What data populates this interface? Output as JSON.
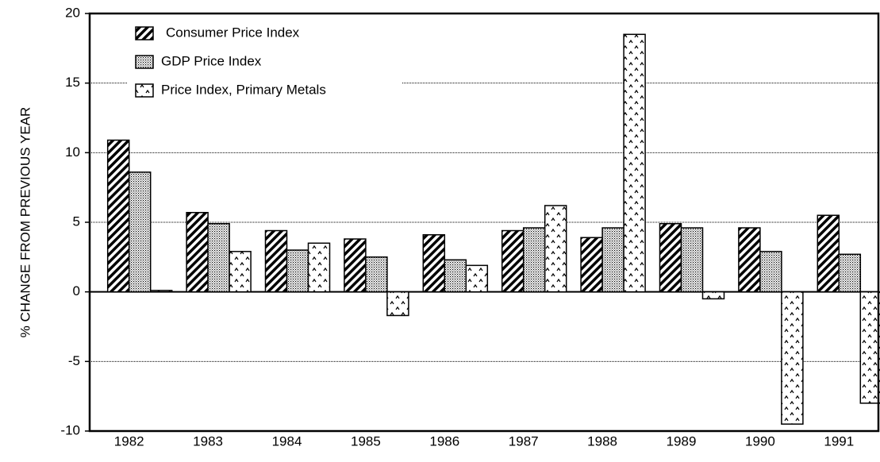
{
  "chart_data": {
    "type": "bar",
    "y_label": "% CHANGE FROM PREVIOUS YEAR",
    "categories": [
      "1982",
      "1983",
      "1984",
      "1985",
      "1986",
      "1987",
      "1988",
      "1989",
      "1990",
      "1991"
    ],
    "series": [
      {
        "name": "Consumer Price Index",
        "color": "#000000",
        "pattern": "diagonal",
        "values": [
          10.9,
          5.7,
          4.4,
          3.8,
          4.1,
          4.4,
          3.9,
          4.9,
          4.6,
          5.5
        ]
      },
      {
        "name": "GDP Price Index",
        "color": "#000000",
        "pattern": "dots",
        "values": [
          8.6,
          4.9,
          3.0,
          2.5,
          2.3,
          4.6,
          4.6,
          4.6,
          2.9,
          2.7
        ]
      },
      {
        "name": "Price Index, Primary Metals",
        "color": "#000000",
        "pattern": "carets",
        "values": [
          0.1,
          2.9,
          3.5,
          -1.7,
          1.9,
          6.2,
          18.5,
          -0.5,
          -9.5,
          -8.0
        ]
      }
    ],
    "ylim": [
      -10,
      20
    ],
    "yticks": [
      -10,
      -5,
      0,
      5,
      10,
      15,
      20
    ],
    "grid": true,
    "legend": "upper left"
  }
}
